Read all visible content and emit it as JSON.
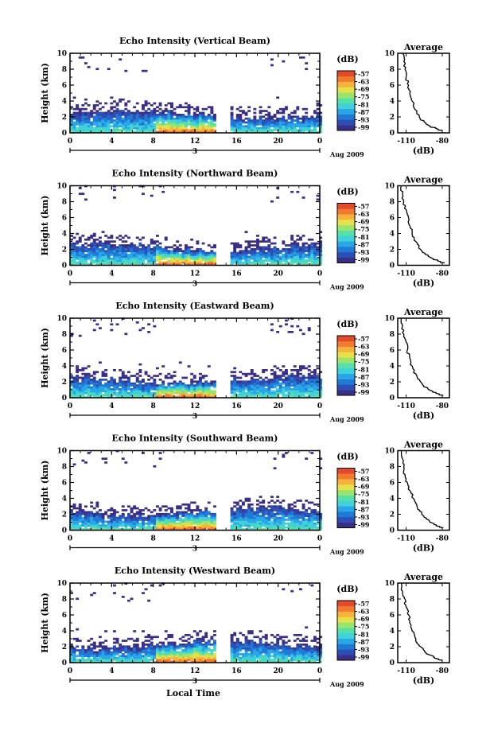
{
  "figure": {
    "xlabel_bottom": "Local Time",
    "colorbar_unit": "(dB)",
    "colorbar_ticks": [
      "-57",
      "-63",
      "-69",
      "-75",
      "-81",
      "-87",
      "-93",
      "-99"
    ],
    "colorbar_colors": [
      "#3a2f86",
      "#2c4fb5",
      "#1f7ad6",
      "#29a6e8",
      "#3fd2d8",
      "#55e0a8",
      "#9be46a",
      "#e6e04a",
      "#f6b23a",
      "#f27a2e",
      "#e24a2a"
    ],
    "no_echo_color": "#ffffff"
  },
  "chart_data": [
    {
      "type": "heatmap",
      "title": "Echo Intensity (Vertical Beam)",
      "ylabel": "Height (km)",
      "ylim": [
        0,
        10
      ],
      "yticks": [
        "0",
        "2",
        "4",
        "6",
        "8",
        "10"
      ],
      "xlim": [
        0,
        24
      ],
      "xticks": [
        "0",
        "4",
        "8",
        "12",
        "16",
        "20",
        "0"
      ],
      "date_day": "3",
      "date_label": "Aug 2009",
      "data_gap_hours": [
        14.0,
        15.2
      ],
      "colorbar_unit": "(dB)",
      "colorbar_range": [
        -99,
        -57
      ],
      "colorbar_ticks": [
        "-57",
        "-63",
        "-69",
        "-75",
        "-81",
        "-87",
        "-93",
        "-99"
      ],
      "profile": {
        "title": "Average",
        "xlabel": "(dB)",
        "xticks": [
          "-110",
          "-80"
        ],
        "xlim": [
          -117,
          -74
        ],
        "yticks": [
          "0",
          "2",
          "4",
          "6",
          "8",
          "10"
        ],
        "ylim": [
          0,
          10
        ],
        "height_km": [
          0.3,
          1,
          2,
          3,
          4,
          5,
          6,
          7,
          8,
          9,
          10
        ],
        "power_db": [
          -80,
          -92,
          -99,
          -103,
          -105,
          -107,
          -108,
          -110,
          -111,
          -112,
          -113
        ]
      }
    },
    {
      "type": "heatmap",
      "title": "Echo Intensity (Northward Beam)",
      "ylabel": "Height (km)",
      "ylim": [
        0,
        10
      ],
      "yticks": [
        "0",
        "2",
        "4",
        "6",
        "8",
        "10"
      ],
      "xlim": [
        0,
        24
      ],
      "xticks": [
        "0",
        "4",
        "8",
        "12",
        "16",
        "20",
        "0"
      ],
      "date_day": "3",
      "date_label": "Aug 2009",
      "data_gap_hours": [
        14.0,
        15.2
      ],
      "colorbar_unit": "(dB)",
      "colorbar_range": [
        -99,
        -57
      ],
      "colorbar_ticks": [
        "-57",
        "-63",
        "-69",
        "-75",
        "-81",
        "-87",
        "-93",
        "-99"
      ],
      "profile": {
        "title": "Average",
        "xlabel": "(dB)",
        "xticks": [
          "-110",
          "-80"
        ],
        "xlim": [
          -117,
          -74
        ],
        "yticks": [
          "0",
          "2",
          "4",
          "6",
          "8",
          "10"
        ],
        "ylim": [
          0,
          10
        ],
        "height_km": [
          0.3,
          1,
          2,
          3,
          4,
          5,
          6,
          7,
          8,
          9,
          10
        ],
        "power_db": [
          -78,
          -90,
          -98,
          -102,
          -105,
          -107,
          -108,
          -110,
          -112,
          -113,
          -114
        ]
      }
    },
    {
      "type": "heatmap",
      "title": "Echo Intensity (Eastward Beam)",
      "ylabel": "Height (km)",
      "ylim": [
        0,
        10
      ],
      "yticks": [
        "0",
        "2",
        "4",
        "6",
        "8",
        "10"
      ],
      "xlim": [
        0,
        24
      ],
      "xticks": [
        "0",
        "4",
        "8",
        "12",
        "16",
        "20",
        "0"
      ],
      "date_day": "3",
      "date_label": "Aug 2009",
      "data_gap_hours": [
        14.0,
        15.2
      ],
      "colorbar_unit": "(dB)",
      "colorbar_range": [
        -99,
        -57
      ],
      "colorbar_ticks": [
        "-57",
        "-63",
        "-69",
        "-75",
        "-81",
        "-87",
        "-93",
        "-99"
      ],
      "profile": {
        "title": "Average",
        "xlabel": "(dB)",
        "xticks": [
          "-110",
          "-80"
        ],
        "xlim": [
          -117,
          -74
        ],
        "yticks": [
          "0",
          "2",
          "4",
          "6",
          "8",
          "10"
        ],
        "ylim": [
          0,
          10
        ],
        "height_km": [
          0.3,
          1,
          2,
          3,
          4,
          5,
          6,
          7,
          8,
          9,
          10
        ],
        "power_db": [
          -79,
          -91,
          -98,
          -102,
          -105,
          -107,
          -109,
          -110,
          -112,
          -113,
          -114
        ]
      }
    },
    {
      "type": "heatmap",
      "title": "Echo Intensity (Southward Beam)",
      "ylabel": "Height (km)",
      "ylim": [
        0,
        10
      ],
      "yticks": [
        "0",
        "2",
        "4",
        "6",
        "8",
        "10"
      ],
      "xlim": [
        0,
        24
      ],
      "xticks": [
        "0",
        "4",
        "8",
        "12",
        "16",
        "20",
        "0"
      ],
      "date_day": "3",
      "date_label": "Aug 2009",
      "data_gap_hours": [
        14.0,
        15.2
      ],
      "colorbar_unit": "(dB)",
      "colorbar_range": [
        -99,
        -57
      ],
      "colorbar_ticks": [
        "-57",
        "-63",
        "-69",
        "-75",
        "-81",
        "-87",
        "-93",
        "-99"
      ],
      "profile": {
        "title": "Average",
        "xlabel": "(dB)",
        "xticks": [
          "-110",
          "-80"
        ],
        "xlim": [
          -117,
          -74
        ],
        "yticks": [
          "0",
          "2",
          "4",
          "6",
          "8",
          "10"
        ],
        "ylim": [
          0,
          10
        ],
        "height_km": [
          0.3,
          1,
          2,
          3,
          4,
          5,
          6,
          7,
          8,
          9,
          10
        ],
        "power_db": [
          -79,
          -90,
          -97,
          -101,
          -104,
          -107,
          -109,
          -111,
          -112,
          -113,
          -114
        ]
      }
    },
    {
      "type": "heatmap",
      "title": "Echo Intensity (Westward Beam)",
      "ylabel": "Height (km)",
      "ylim": [
        0,
        10
      ],
      "yticks": [
        "0",
        "2",
        "4",
        "6",
        "8",
        "10"
      ],
      "xlim": [
        0,
        24
      ],
      "xticks": [
        "0",
        "4",
        "8",
        "12",
        "16",
        "20",
        "0"
      ],
      "date_day": "3",
      "date_label": "Aug 2009",
      "data_gap_hours": [
        14.0,
        15.2
      ],
      "colorbar_unit": "(dB)",
      "colorbar_range": [
        -99,
        -57
      ],
      "colorbar_ticks": [
        "-57",
        "-63",
        "-69",
        "-75",
        "-81",
        "-87",
        "-93",
        "-99"
      ],
      "profile": {
        "title": "Average",
        "xlabel": "(dB)",
        "xticks": [
          "-110",
          "-80"
        ],
        "xlim": [
          -117,
          -74
        ],
        "yticks": [
          "0",
          "2",
          "4",
          "6",
          "8",
          "10"
        ],
        "ylim": [
          0,
          10
        ],
        "height_km": [
          0.3,
          1,
          2,
          3,
          4,
          5,
          6,
          7,
          8,
          9,
          10
        ],
        "power_db": [
          -80,
          -91,
          -98,
          -102,
          -105,
          -107,
          -108,
          -110,
          -111,
          -113,
          -114
        ]
      }
    }
  ]
}
